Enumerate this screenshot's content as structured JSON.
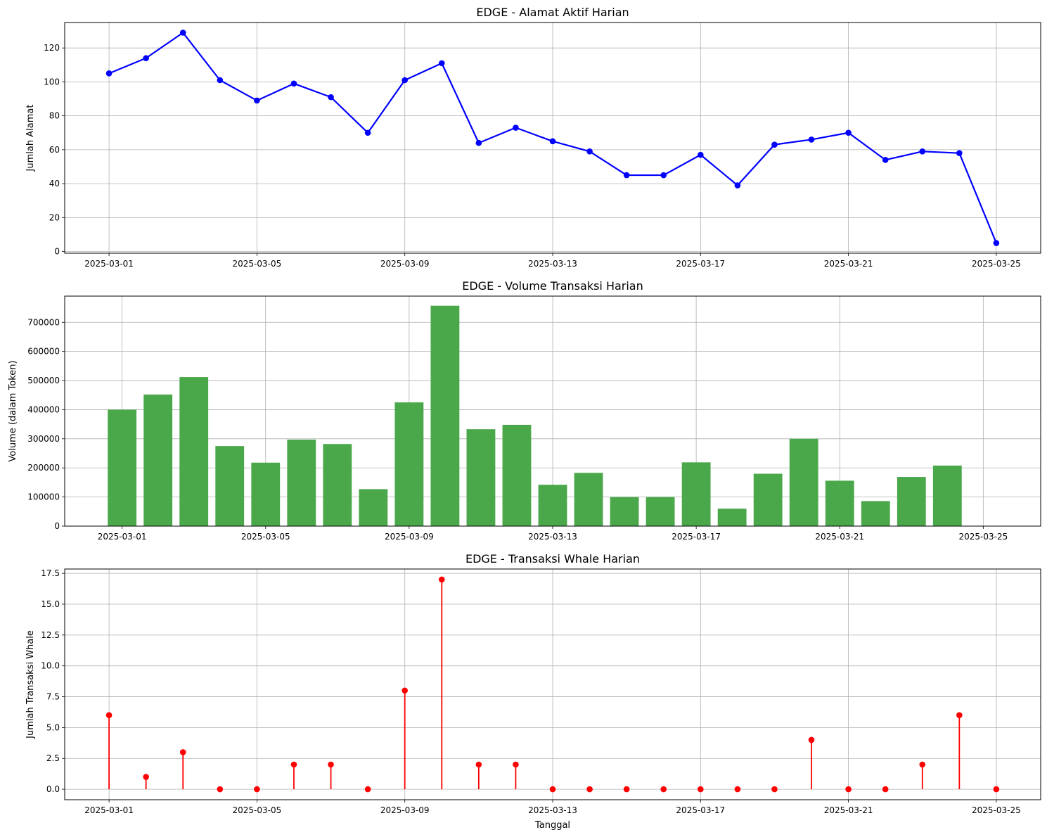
{
  "chart_data": [
    {
      "type": "line",
      "title": "EDGE - Alamat Aktif Harian",
      "xlabel": "",
      "ylabel": "Jumlah Alamat",
      "x": [
        "2025-03-01",
        "2025-03-02",
        "2025-03-03",
        "2025-03-04",
        "2025-03-05",
        "2025-03-06",
        "2025-03-07",
        "2025-03-08",
        "2025-03-09",
        "2025-03-10",
        "2025-03-11",
        "2025-03-12",
        "2025-03-13",
        "2025-03-14",
        "2025-03-15",
        "2025-03-16",
        "2025-03-17",
        "2025-03-18",
        "2025-03-19",
        "2025-03-20",
        "2025-03-21",
        "2025-03-22",
        "2025-03-23",
        "2025-03-24",
        "2025-03-25"
      ],
      "values": [
        105,
        114,
        129,
        101,
        89,
        99,
        91,
        70,
        101,
        111,
        64,
        73,
        65,
        59,
        45,
        45,
        57,
        39,
        63,
        66,
        70,
        54,
        59,
        58,
        5
      ],
      "xticks": [
        "2025-03-01",
        "2025-03-05",
        "2025-03-09",
        "2025-03-13",
        "2025-03-17",
        "2025-03-21",
        "2025-03-25"
      ],
      "yticks": [
        "0",
        "20",
        "40",
        "60",
        "80",
        "100",
        "120"
      ],
      "ylim": [
        -1,
        135
      ],
      "grid": true,
      "color": "#0000ff"
    },
    {
      "type": "bar",
      "title": "EDGE - Volume Transaksi Harian",
      "xlabel": "",
      "ylabel": "Volume (dalam Token)",
      "x": [
        "2025-03-01",
        "2025-03-02",
        "2025-03-03",
        "2025-03-04",
        "2025-03-05",
        "2025-03-06",
        "2025-03-07",
        "2025-03-08",
        "2025-03-09",
        "2025-03-10",
        "2025-03-11",
        "2025-03-12",
        "2025-03-13",
        "2025-03-14",
        "2025-03-15",
        "2025-03-16",
        "2025-03-17",
        "2025-03-18",
        "2025-03-19",
        "2025-03-20",
        "2025-03-21",
        "2025-03-22",
        "2025-03-23",
        "2025-03-24",
        "2025-03-25"
      ],
      "values": [
        400000,
        452000,
        512000,
        275000,
        218000,
        297000,
        282000,
        127000,
        425000,
        757000,
        333000,
        348000,
        142000,
        183000,
        100000,
        100000,
        219000,
        60000,
        180000,
        300000,
        156000,
        86000,
        169000,
        208000,
        0
      ],
      "xticks": [
        "2025-03-01",
        "2025-03-05",
        "2025-03-09",
        "2025-03-13",
        "2025-03-17",
        "2025-03-21",
        "2025-03-25"
      ],
      "yticks": [
        "0",
        "100000",
        "200000",
        "300000",
        "400000",
        "500000",
        "600000",
        "700000"
      ],
      "ylim": [
        0,
        790000
      ],
      "grid": true,
      "color": "#4aa84a"
    },
    {
      "type": "stem",
      "title": "EDGE - Transaksi Whale Harian",
      "xlabel": "Tanggal",
      "ylabel": "Jumlah Transaksi Whale",
      "x": [
        "2025-03-01",
        "2025-03-02",
        "2025-03-03",
        "2025-03-04",
        "2025-03-05",
        "2025-03-06",
        "2025-03-07",
        "2025-03-08",
        "2025-03-09",
        "2025-03-10",
        "2025-03-11",
        "2025-03-12",
        "2025-03-13",
        "2025-03-14",
        "2025-03-15",
        "2025-03-16",
        "2025-03-17",
        "2025-03-18",
        "2025-03-19",
        "2025-03-20",
        "2025-03-21",
        "2025-03-22",
        "2025-03-23",
        "2025-03-24",
        "2025-03-25"
      ],
      "values": [
        6,
        1,
        3,
        0,
        0,
        2,
        2,
        0,
        8,
        17,
        2,
        2,
        0,
        0,
        0,
        0,
        0,
        0,
        0,
        4,
        0,
        0,
        2,
        6,
        0
      ],
      "xticks": [
        "2025-03-01",
        "2025-03-05",
        "2025-03-09",
        "2025-03-13",
        "2025-03-17",
        "2025-03-21",
        "2025-03-25"
      ],
      "yticks": [
        "0.0",
        "2.5",
        "5.0",
        "7.5",
        "10.0",
        "12.5",
        "15.0",
        "17.5"
      ],
      "ylim": [
        -0.85,
        17.85
      ],
      "grid": true,
      "color": "#ff0000"
    }
  ]
}
